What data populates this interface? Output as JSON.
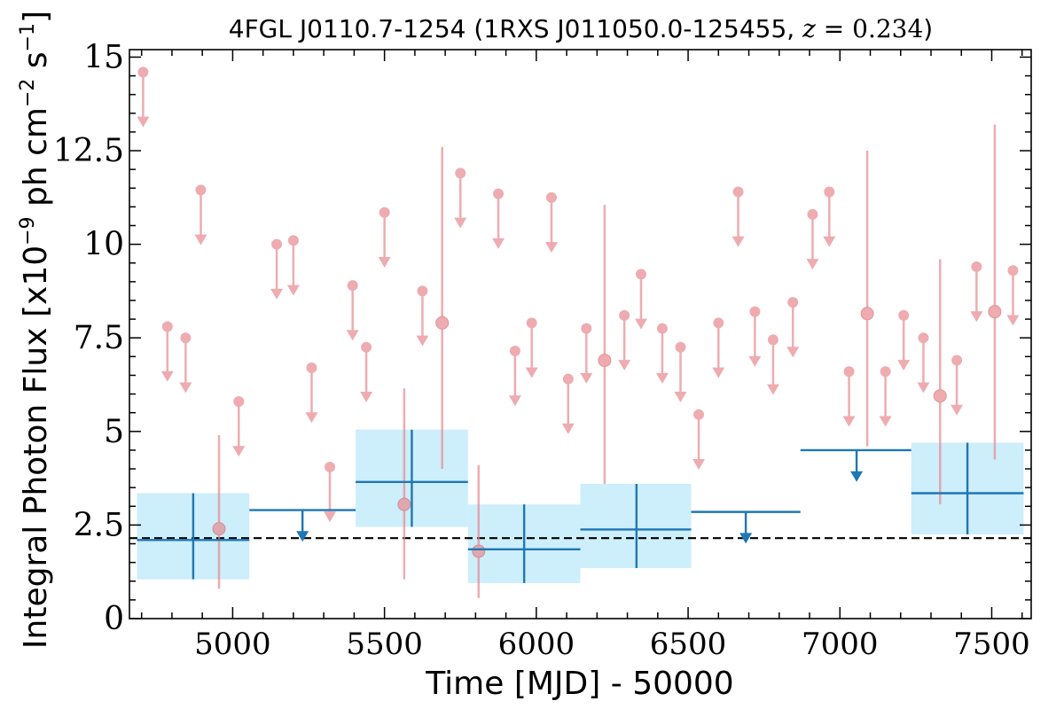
{
  "chart_data": {
    "type": "scatter",
    "title": {
      "source": "4FGL J0110.7-1254",
      "counterpart": "1RXS J011050.0-125455",
      "redshift_var": "z",
      "redshift_val": "0.234"
    },
    "xlabel": "Time [MJD] - 50000",
    "ylabel": {
      "prefix": "Integral Photon Flux [x10",
      "exp1": "−9",
      "mid": " ph cm",
      "exp2": "−2",
      "mid2": " s",
      "exp3": "−1",
      "suffix": "]"
    },
    "xlim": [
      4660,
      7630
    ],
    "ylim": [
      0,
      15.2
    ],
    "xticks": [
      5000,
      5500,
      6000,
      6500,
      7000,
      7500
    ],
    "yticks": [
      0,
      2.5,
      5,
      7.5,
      10,
      12.5,
      15
    ],
    "ytick_labels": [
      "0",
      "2.5",
      "5",
      "7.5",
      "10",
      "12.5",
      "15"
    ],
    "grid": false,
    "colors": {
      "short_bins": "#e88a8f",
      "long_bins": "#1f77b4",
      "long_err_box": "#cdeefb",
      "baseline": "#000000"
    },
    "baseline_flux": 2.15,
    "short_bin_upper_limits": [
      {
        "x": 4705,
        "y": 14.6
      },
      {
        "x": 4785,
        "y": 7.8
      },
      {
        "x": 4845,
        "y": 7.5
      },
      {
        "x": 4895,
        "y": 11.45
      },
      {
        "x": 5020,
        "y": 5.8
      },
      {
        "x": 5145,
        "y": 10.0
      },
      {
        "x": 5200,
        "y": 10.1
      },
      {
        "x": 5260,
        "y": 6.7
      },
      {
        "x": 5320,
        "y": 4.05
      },
      {
        "x": 5395,
        "y": 8.9
      },
      {
        "x": 5440,
        "y": 7.25
      },
      {
        "x": 5500,
        "y": 10.85
      },
      {
        "x": 5625,
        "y": 8.75
      },
      {
        "x": 5750,
        "y": 11.9
      },
      {
        "x": 5875,
        "y": 11.35
      },
      {
        "x": 5930,
        "y": 7.15
      },
      {
        "x": 5985,
        "y": 7.9
      },
      {
        "x": 6050,
        "y": 11.25
      },
      {
        "x": 6105,
        "y": 6.4
      },
      {
        "x": 6165,
        "y": 7.75
      },
      {
        "x": 6290,
        "y": 8.1
      },
      {
        "x": 6345,
        "y": 9.2
      },
      {
        "x": 6415,
        "y": 7.75
      },
      {
        "x": 6475,
        "y": 7.25
      },
      {
        "x": 6535,
        "y": 5.45
      },
      {
        "x": 6600,
        "y": 7.9
      },
      {
        "x": 6665,
        "y": 11.4
      },
      {
        "x": 6720,
        "y": 8.2
      },
      {
        "x": 6780,
        "y": 7.45
      },
      {
        "x": 6845,
        "y": 8.45
      },
      {
        "x": 6910,
        "y": 10.8
      },
      {
        "x": 6965,
        "y": 11.4
      },
      {
        "x": 7030,
        "y": 6.6
      },
      {
        "x": 7150,
        "y": 6.6
      },
      {
        "x": 7210,
        "y": 8.1
      },
      {
        "x": 7275,
        "y": 7.5
      },
      {
        "x": 7385,
        "y": 6.9
      },
      {
        "x": 7450,
        "y": 9.4
      },
      {
        "x": 7570,
        "y": 9.3
      }
    ],
    "short_bin_detections": [
      {
        "x": 4955,
        "y": 2.4,
        "ylo": 0.8,
        "yhi": 4.9
      },
      {
        "x": 5565,
        "y": 3.05,
        "ylo": 1.05,
        "yhi": 6.15
      },
      {
        "x": 5690,
        "y": 7.9,
        "ylo": 4.0,
        "yhi": 12.6
      },
      {
        "x": 5810,
        "y": 1.8,
        "ylo": 0.55,
        "yhi": 4.1
      },
      {
        "x": 6225,
        "y": 6.9,
        "ylo": 3.6,
        "yhi": 11.05
      },
      {
        "x": 7090,
        "y": 8.15,
        "ylo": 4.6,
        "yhi": 12.5
      },
      {
        "x": 7330,
        "y": 5.95,
        "ylo": 3.05,
        "yhi": 9.6
      },
      {
        "x": 7510,
        "y": 8.2,
        "ylo": 4.25,
        "yhi": 13.2
      }
    ],
    "long_bin_detections": [
      {
        "x0": 4685,
        "x1": 5055,
        "xc": 4870,
        "y": 2.1,
        "ylo": 1.05,
        "yhi": 3.35
      },
      {
        "x0": 5405,
        "x1": 5775,
        "xc": 5590,
        "y": 3.65,
        "ylo": 2.45,
        "yhi": 5.05
      },
      {
        "x0": 5775,
        "x1": 6145,
        "xc": 5960,
        "y": 1.85,
        "ylo": 0.95,
        "yhi": 3.05
      },
      {
        "x0": 6145,
        "x1": 6510,
        "xc": 6330,
        "y": 2.38,
        "ylo": 1.35,
        "yhi": 3.6
      },
      {
        "x0": 7235,
        "x1": 7605,
        "xc": 7420,
        "y": 3.35,
        "ylo": 2.25,
        "yhi": 4.7
      }
    ],
    "long_bin_upper_limits": [
      {
        "x0": 5055,
        "x1": 5405,
        "xc": 5230,
        "y": 2.9
      },
      {
        "x0": 6510,
        "x1": 6870,
        "xc": 6690,
        "y": 2.85
      },
      {
        "x0": 6870,
        "x1": 7235,
        "xc": 7055,
        "y": 4.5
      }
    ]
  }
}
